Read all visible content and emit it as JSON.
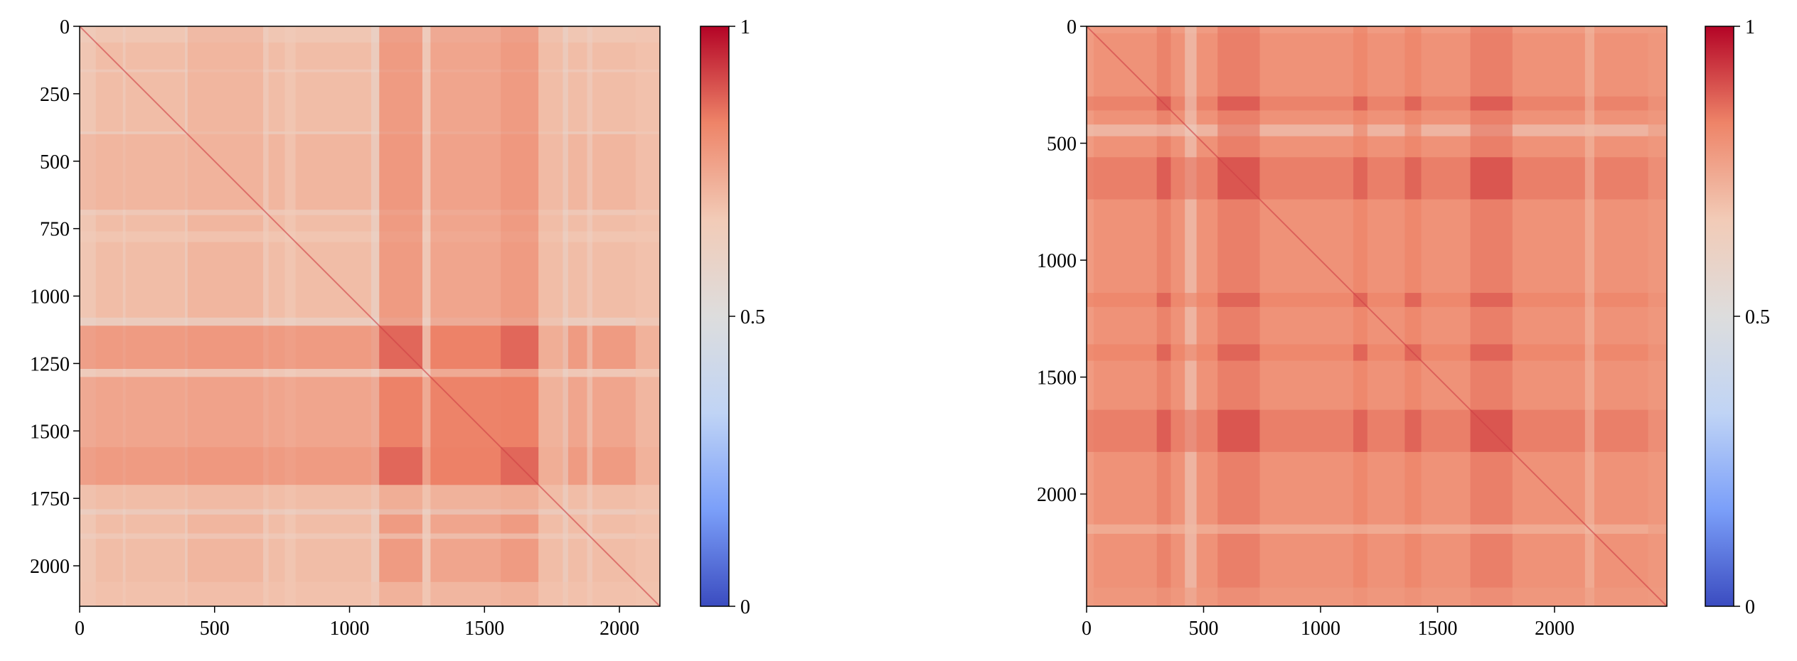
{
  "chart_data": [
    {
      "type": "heatmap",
      "panel": "left",
      "title": "",
      "xlabel": "",
      "ylabel": "",
      "matrix_size": 2150,
      "xlim": [
        0,
        2150
      ],
      "ylim": [
        2150,
        0
      ],
      "x_ticks": [
        0,
        500,
        1000,
        1500,
        2000
      ],
      "x_tick_labels": [
        "0",
        "500",
        "1000",
        "1500",
        "2000"
      ],
      "y_ticks": [
        0,
        250,
        500,
        750,
        1000,
        1250,
        1500,
        1750,
        2000
      ],
      "y_tick_labels": [
        "0",
        "250",
        "500",
        "750",
        "1000",
        "1250",
        "1500",
        "1750",
        "2000"
      ],
      "base_value": 0.7,
      "bands": [
        {
          "start": 0,
          "end": 60,
          "value": 0.64
        },
        {
          "start": 160,
          "end": 170,
          "value": 0.62
        },
        {
          "start": 390,
          "end": 400,
          "value": 0.6
        },
        {
          "start": 400,
          "end": 680,
          "value": 0.73
        },
        {
          "start": 680,
          "end": 700,
          "value": 0.62
        },
        {
          "start": 760,
          "end": 800,
          "value": 0.66
        },
        {
          "start": 1080,
          "end": 1110,
          "value": 0.56
        },
        {
          "start": 1110,
          "end": 1270,
          "value": 0.84
        },
        {
          "start": 1270,
          "end": 1300,
          "value": 0.62
        },
        {
          "start": 1300,
          "end": 1560,
          "value": 0.8
        },
        {
          "start": 1560,
          "end": 1700,
          "value": 0.84
        },
        {
          "start": 1700,
          "end": 1790,
          "value": 0.7
        },
        {
          "start": 1790,
          "end": 1810,
          "value": 0.58
        },
        {
          "start": 1880,
          "end": 1900,
          "value": 0.62
        },
        {
          "start": 2060,
          "end": 2150,
          "value": 0.68
        }
      ],
      "colorbar": {
        "min": 0,
        "max": 1,
        "ticks": [
          0,
          0.5,
          1
        ],
        "tick_labels": [
          "0",
          "0.5",
          "1"
        ],
        "colormap": "coolwarm",
        "colors": [
          "#3b4cc0",
          "#7b9ff9",
          "#c0d4f5",
          "#dddddd",
          "#f2cbb7",
          "#ee8468",
          "#b40426"
        ]
      }
    },
    {
      "type": "heatmap",
      "panel": "right",
      "title": "",
      "xlabel": "",
      "ylabel": "",
      "matrix_size": 2480,
      "xlim": [
        0,
        2480
      ],
      "ylim": [
        2480,
        0
      ],
      "x_ticks": [
        0,
        500,
        1000,
        1500,
        2000
      ],
      "x_tick_labels": [
        "0",
        "500",
        "1000",
        "1500",
        "2000"
      ],
      "y_ticks": [
        0,
        500,
        1000,
        1500,
        2000
      ],
      "y_tick_labels": [
        "0",
        "500",
        "1000",
        "1500",
        "2000"
      ],
      "base_value": 0.8,
      "bands": [
        {
          "start": 0,
          "end": 30,
          "value": 0.76
        },
        {
          "start": 300,
          "end": 360,
          "value": 0.85
        },
        {
          "start": 420,
          "end": 470,
          "value": 0.62
        },
        {
          "start": 560,
          "end": 740,
          "value": 0.86
        },
        {
          "start": 1140,
          "end": 1200,
          "value": 0.84
        },
        {
          "start": 1360,
          "end": 1430,
          "value": 0.84
        },
        {
          "start": 1640,
          "end": 1820,
          "value": 0.86
        },
        {
          "start": 2130,
          "end": 2170,
          "value": 0.7
        },
        {
          "start": 2400,
          "end": 2480,
          "value": 0.78
        }
      ],
      "colorbar": {
        "min": 0,
        "max": 1,
        "ticks": [
          0,
          0.5,
          1
        ],
        "tick_labels": [
          "0",
          "0.5",
          "1"
        ],
        "colormap": "coolwarm",
        "colors": [
          "#3b4cc0",
          "#7b9ff9",
          "#c0d4f5",
          "#dddddd",
          "#f2cbb7",
          "#ee8468",
          "#b40426"
        ]
      }
    }
  ]
}
